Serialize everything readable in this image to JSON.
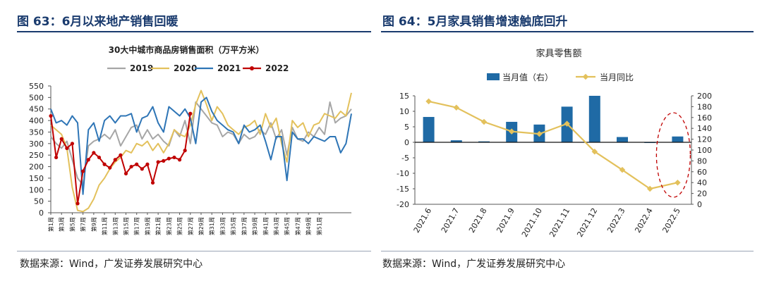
{
  "left": {
    "fig_title": "图 63：6月以来地产销售回暖",
    "source": "数据来源：Wind，广发证券发展研究中心",
    "chart_data": {
      "type": "line",
      "title": "30大中城市商品房销售面积（万平方米）",
      "ylim": [
        0,
        550
      ],
      "yticks": [
        "0",
        "50",
        "100",
        "150",
        "200",
        "250",
        "300",
        "350",
        "400",
        "450",
        "500",
        "550"
      ],
      "xtick_labels": [
        "第1周",
        "第3周",
        "第5周",
        "第7周",
        "第9周",
        "第11周",
        "第13周",
        "第15周",
        "第17周",
        "第19周",
        "第21周",
        "第23周",
        "第25周",
        "第27周",
        "第29周",
        "第31周",
        "第33周",
        "第35周",
        "第37周",
        "第39周",
        "第41周",
        "第43周",
        "第45周",
        "第47周",
        "第49周",
        "第51周"
      ],
      "series": [
        {
          "name": "2019",
          "color": "#a6a6a6",
          "values": [
            330,
            300,
            280,
            310,
            230,
            150,
            120,
            290,
            310,
            320,
            340,
            320,
            360,
            290,
            330,
            370,
            380,
            320,
            360,
            320,
            340,
            310,
            290,
            360,
            330,
            400,
            300,
            480,
            450,
            420,
            390,
            380,
            330,
            350,
            340,
            300,
            340,
            320,
            330,
            360,
            340,
            390,
            320,
            360,
            250,
            370,
            320,
            310,
            350,
            330,
            370,
            340,
            480,
            390,
            410,
            420,
            450
          ]
        },
        {
          "name": "2020",
          "color": "#e3c15c",
          "values": [
            380,
            360,
            340,
            280,
            110,
            10,
            5,
            20,
            60,
            120,
            150,
            190,
            220,
            240,
            270,
            260,
            300,
            290,
            310,
            270,
            300,
            260,
            300,
            360,
            340,
            330,
            380,
            470,
            530,
            470,
            400,
            460,
            430,
            380,
            360,
            340,
            370,
            380,
            400,
            340,
            430,
            370,
            410,
            300,
            220,
            400,
            370,
            390,
            330,
            380,
            390,
            430,
            420,
            410,
            440,
            420,
            520
          ]
        },
        {
          "name": "2021",
          "color": "#2e75b6",
          "values": [
            450,
            390,
            400,
            380,
            420,
            390,
            80,
            360,
            390,
            310,
            400,
            420,
            390,
            420,
            420,
            430,
            350,
            410,
            420,
            460,
            390,
            350,
            460,
            440,
            420,
            450,
            410,
            300,
            480,
            500,
            440,
            400,
            380,
            360,
            350,
            300,
            380,
            350,
            360,
            380,
            310,
            230,
            330,
            330,
            140,
            350,
            320,
            320,
            300,
            330,
            320,
            310,
            330,
            330,
            260,
            300,
            430
          ]
        },
        {
          "name": "2022",
          "color": "#c00000",
          "values": [
            420,
            240,
            320,
            280,
            300,
            40,
            180,
            230,
            260,
            240,
            210,
            195,
            230,
            250,
            170,
            200,
            210,
            190,
            210,
            130,
            220,
            225,
            235,
            240,
            230,
            270,
            430
          ]
        }
      ]
    }
  },
  "right": {
    "fig_title": "图 64：5月家具销售增速触底回升",
    "source": "数据来源：Wind，广发证券发展研究中心",
    "chart_data": {
      "type": "bar",
      "title": "家具零售额",
      "categories": [
        "2021.6",
        "2021.7",
        "2021.8",
        "2021.9",
        "2021.10",
        "2021.11",
        "2021.12",
        "2022.3",
        "2022.4",
        "2022.5"
      ],
      "series": [
        {
          "name": "当月值（右）",
          "color": "#1f6aa5",
          "axis": "right",
          "values": [
            161,
            118,
            116,
            152,
            147,
            180,
            200,
            124,
            113,
            125
          ]
        },
        {
          "name": "当月同比",
          "color": "#e3c15c",
          "axis": "left",
          "values": [
            13.2,
            11.2,
            6.6,
            3.5,
            2.7,
            6.0,
            -3.0,
            -8.9,
            -15.0,
            -13.0
          ]
        }
      ],
      "ylim_left": [
        -20,
        15
      ],
      "ylim_right": [
        0,
        200
      ],
      "yticks_left": [
        "-20",
        "-15",
        "-10",
        "-5",
        "0",
        "5",
        "10",
        "15"
      ],
      "yticks_right": [
        "0",
        "20",
        "40",
        "60",
        "80",
        "100",
        "120",
        "140",
        "160",
        "180",
        "200"
      ]
    }
  }
}
